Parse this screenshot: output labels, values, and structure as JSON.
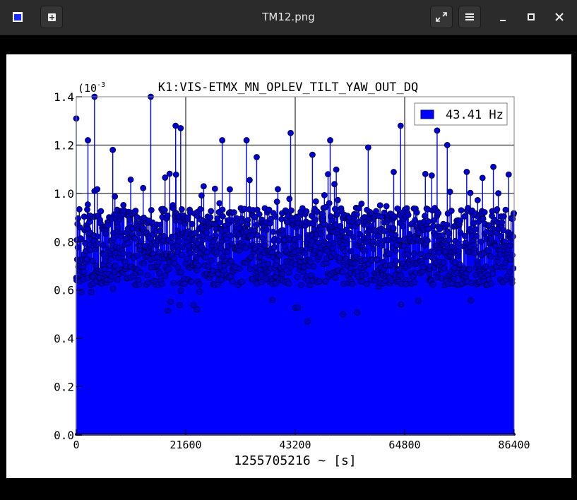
{
  "window": {
    "title": "TM12.png",
    "buttons": [
      "app-icon",
      "new-tab-icon",
      "fullscreen-icon",
      "menu-icon",
      "minimize-icon",
      "maximize-icon",
      "close-icon"
    ]
  },
  "colors": {
    "series": "#0000ff",
    "marker": "#0000cc",
    "titlebar": "#2b2b2b"
  },
  "chart_data": {
    "type": "scatter",
    "title": "K1:VIS-ETMX_MN_OPLEV_TILT_YAW_OUT_DQ",
    "xlabel": "1255705216 ~ [s]",
    "ylabel": "",
    "exponent_label": "(10",
    "exponent_power": "-3",
    "xlim": [
      0,
      86400
    ],
    "ylim": [
      0,
      1.4
    ],
    "x_ticks": [
      "0",
      "21600",
      "43200",
      "64800",
      "86400"
    ],
    "y_ticks": [
      "0.0",
      "0.2",
      "0.4",
      "0.6",
      "0.8",
      "1.0",
      "1.2",
      "1.4"
    ],
    "x_tick_values": [
      0,
      21600,
      43200,
      64800,
      86400
    ],
    "y_tick_values": [
      0,
      0.2,
      0.4,
      0.6,
      0.8,
      1.0,
      1.2,
      1.4
    ],
    "grid": true,
    "legend_position": "top-right",
    "series": [
      {
        "name": "43.41 Hz",
        "style": "stem",
        "n_points": 1440,
        "highlights": [
          {
            "x": 0,
            "y": 1.31
          },
          {
            "x": 3600,
            "y": 1.41
          },
          {
            "x": 14700,
            "y": 1.41
          },
          {
            "x": 19600,
            "y": 1.28
          },
          {
            "x": 20600,
            "y": 1.27
          },
          {
            "x": 2300,
            "y": 1.22
          },
          {
            "x": 7200,
            "y": 1.18
          },
          {
            "x": 28800,
            "y": 1.22
          },
          {
            "x": 33600,
            "y": 1.22
          },
          {
            "x": 42300,
            "y": 1.25
          },
          {
            "x": 50100,
            "y": 1.22
          },
          {
            "x": 57600,
            "y": 1.19
          },
          {
            "x": 64000,
            "y": 1.28
          },
          {
            "x": 71200,
            "y": 1.26
          },
          {
            "x": 73200,
            "y": 1.2
          },
          {
            "x": 82300,
            "y": 1.11
          },
          {
            "x": 35600,
            "y": 1.15
          },
          {
            "x": 46600,
            "y": 1.16
          },
          {
            "x": 45600,
            "y": 0.47
          },
          {
            "x": 52600,
            "y": 0.5
          },
          {
            "x": 23800,
            "y": 0.52
          },
          {
            "x": 86000,
            "y": 0.63
          }
        ]
      }
    ]
  }
}
